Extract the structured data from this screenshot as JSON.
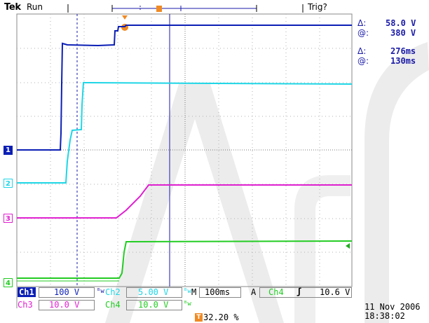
{
  "header": {
    "brand": "Tek",
    "run_state": "Run",
    "trigger_status": "Trig?"
  },
  "cursor_readouts": {
    "voltage_delta_symbol": "Δ:",
    "voltage_delta": "58.0 V",
    "voltage_at_symbol": "@:",
    "voltage_at": "380 V",
    "time_delta_symbol": "Δ:",
    "time_delta": "276ms",
    "time_at_symbol": "@:",
    "time_at": "130ms"
  },
  "channels": {
    "ch1": {
      "name": "Ch1",
      "scale": "100 V",
      "marker": "1",
      "color": "#0b1fb5"
    },
    "ch2": {
      "name": "Ch2",
      "scale": "5.00 V",
      "marker": "2",
      "color": "#1ed6e6"
    },
    "ch3": {
      "name": "Ch3",
      "scale": "10.0 V",
      "marker": "3",
      "color": "#e020d0"
    },
    "ch4": {
      "name": "Ch4",
      "scale": "10.0 V",
      "marker": "4",
      "color": "#22cc22"
    }
  },
  "timebase": {
    "label": "M",
    "value": "100ms"
  },
  "trigger": {
    "mode": "A",
    "source": "Ch4",
    "slope_symbol": "ʃ",
    "level": "10.6 V",
    "position": "32.20 %"
  },
  "datetime": {
    "date": "11 Nov 2006",
    "time": "18:38:02"
  },
  "colors": {
    "grid": "#888888",
    "background": "#ffffff",
    "cursor": "#1a1aa8",
    "trigger_marker": "#f08a24"
  }
}
